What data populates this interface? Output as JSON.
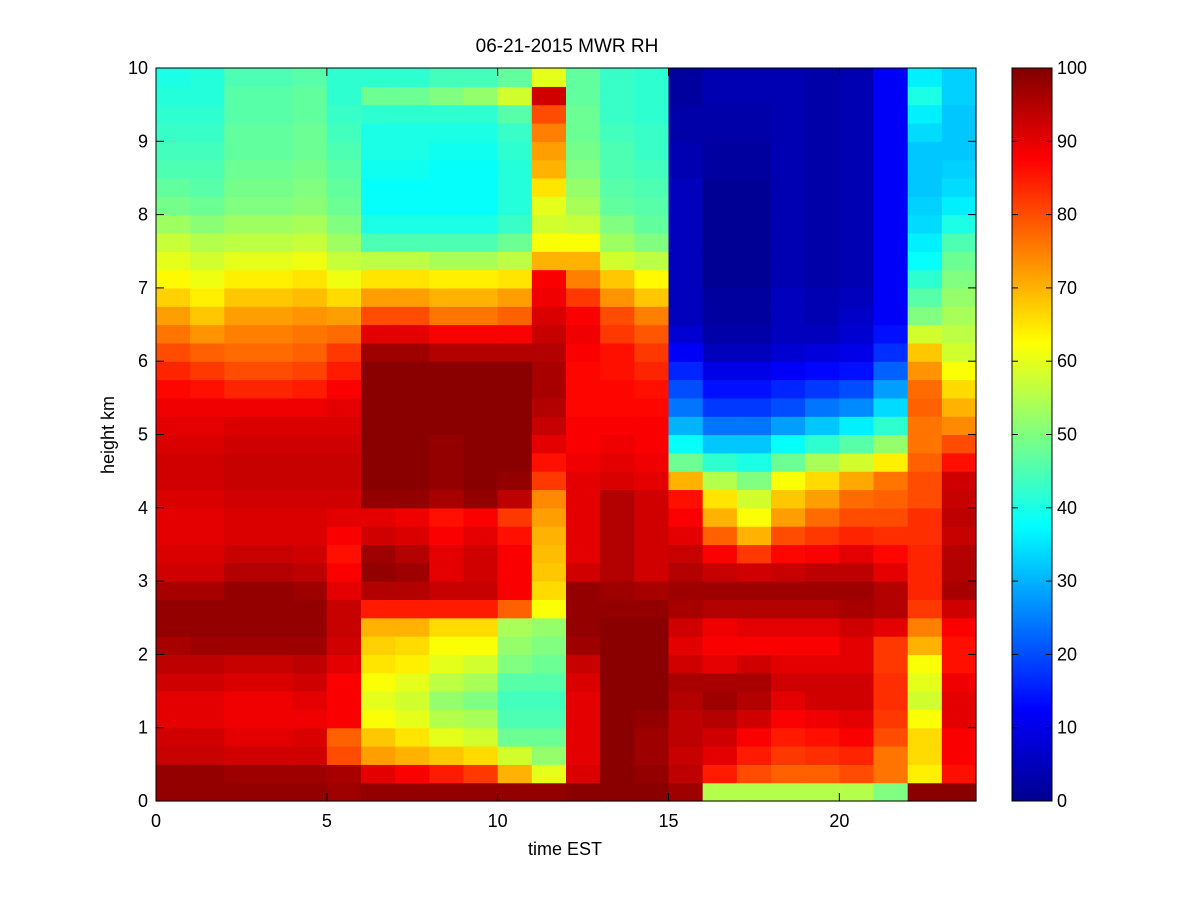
{
  "chart_data": {
    "type": "heatmap",
    "title": "06-21-2015 MWR RH",
    "xlabel": "time EST",
    "ylabel": "height km",
    "xlim": [
      0,
      24
    ],
    "ylim": [
      0,
      10
    ],
    "xticks": [
      "0",
      "5",
      "10",
      "15",
      "20"
    ],
    "yticks": [
      "0",
      "1",
      "2",
      "3",
      "4",
      "5",
      "6",
      "7",
      "8",
      "9",
      "10"
    ],
    "colorbar": {
      "range": [
        0,
        100
      ],
      "ticks": [
        "0",
        "10",
        "20",
        "30",
        "40",
        "50",
        "60",
        "70",
        "80",
        "90",
        "100"
      ],
      "colormap": "jet"
    },
    "grid": false,
    "hours": [
      0,
      1,
      2,
      3,
      4,
      5,
      6,
      7,
      8,
      9,
      10,
      11,
      12,
      13,
      14,
      15,
      16,
      17,
      18,
      19,
      20,
      21,
      22,
      23
    ],
    "heights": [
      0.0,
      0.25,
      0.5,
      0.75,
      1.0,
      1.25,
      1.5,
      1.75,
      2.0,
      2.25,
      2.5,
      2.75,
      3.0,
      3.25,
      3.5,
      3.75,
      4.0,
      4.25,
      4.5,
      4.75,
      5.0,
      5.25,
      5.5,
      5.75,
      6.0,
      6.25,
      6.5,
      6.75,
      7.0,
      7.25,
      7.5,
      7.75,
      8.0,
      8.25,
      8.5,
      8.75,
      9.0,
      9.25,
      9.5,
      9.75
    ],
    "rh_by_hour": [
      [
        98,
        98,
        93,
        92,
        90,
        90,
        92,
        94,
        96,
        98,
        98,
        96,
        92,
        91,
        90,
        90,
        91,
        92,
        92,
        91,
        90,
        89,
        87,
        84,
        80,
        76,
        72,
        67,
        63,
        60,
        57,
        53,
        49,
        47,
        45,
        44,
        43,
        42,
        41,
        40
      ],
      [
        98,
        98,
        93,
        92,
        90,
        90,
        92,
        94,
        97,
        98,
        98,
        96,
        92,
        91,
        90,
        90,
        91,
        92,
        92,
        91,
        90,
        89,
        86,
        82,
        78,
        73,
        68,
        64,
        61,
        58,
        55,
        51,
        48,
        46,
        45,
        44,
        43,
        42,
        41,
        41
      ],
      [
        98,
        97,
        92,
        90,
        89,
        89,
        91,
        93,
        97,
        98,
        98,
        98,
        95,
        93,
        91,
        91,
        92,
        93,
        93,
        92,
        91,
        89,
        84,
        80,
        77,
        75,
        72,
        68,
        64,
        60,
        56,
        53,
        50,
        49,
        48,
        47,
        47,
        46,
        46,
        45
      ],
      [
        98,
        97,
        92,
        90,
        89,
        89,
        91,
        93,
        97,
        98,
        98,
        98,
        95,
        93,
        91,
        91,
        92,
        93,
        93,
        92,
        91,
        89,
        84,
        80,
        77,
        75,
        72,
        68,
        64,
        60,
        56,
        53,
        50,
        49,
        48,
        47,
        47,
        46,
        46,
        45
      ],
      [
        98,
        97,
        92,
        91,
        89,
        90,
        92,
        94,
        97,
        98,
        98,
        97,
        94,
        92,
        91,
        91,
        92,
        93,
        93,
        92,
        91,
        89,
        85,
        81,
        78,
        76,
        73,
        69,
        65,
        61,
        57,
        54,
        51,
        50,
        49,
        48,
        48,
        47,
        47,
        46
      ],
      [
        97,
        96,
        80,
        78,
        88,
        88,
        88,
        90,
        92,
        93,
        93,
        90,
        88,
        86,
        88,
        90,
        92,
        93,
        93,
        92,
        91,
        90,
        88,
        85,
        82,
        77,
        72,
        66,
        61,
        57,
        53,
        50,
        48,
        47,
        46,
        45,
        44,
        43,
        42,
        42
      ],
      [
        98,
        90,
        72,
        68,
        62,
        60,
        62,
        65,
        67,
        70,
        85,
        95,
        98,
        97,
        92,
        90,
        98,
        99,
        99,
        99,
        99,
        99,
        99,
        99,
        97,
        90,
        80,
        72,
        65,
        56,
        45,
        40,
        38,
        38,
        39,
        40,
        40,
        42,
        48,
        42
      ],
      [
        98,
        88,
        70,
        65,
        60,
        58,
        60,
        64,
        66,
        70,
        85,
        95,
        97,
        95,
        91,
        89,
        98,
        99,
        99,
        99,
        99,
        99,
        99,
        99,
        97,
        90,
        80,
        72,
        65,
        56,
        45,
        40,
        38,
        38,
        39,
        40,
        40,
        42,
        48,
        42
      ],
      [
        98,
        85,
        68,
        60,
        55,
        52,
        56,
        60,
        62,
        66,
        85,
        93,
        90,
        90,
        88,
        86,
        96,
        98,
        98,
        98,
        99,
        99,
        99,
        99,
        95,
        88,
        76,
        70,
        64,
        54,
        45,
        40,
        38,
        38,
        38,
        39,
        40,
        42,
        50,
        44
      ],
      [
        98,
        82,
        66,
        58,
        54,
        50,
        54,
        58,
        62,
        66,
        85,
        93,
        92,
        92,
        90,
        88,
        98,
        99,
        99,
        99,
        99,
        99,
        99,
        99,
        95,
        88,
        76,
        70,
        64,
        54,
        45,
        40,
        38,
        38,
        38,
        39,
        40,
        42,
        52,
        44
      ],
      [
        98,
        70,
        58,
        48,
        45,
        44,
        46,
        50,
        52,
        54,
        78,
        88,
        88,
        88,
        86,
        82,
        94,
        98,
        99,
        99,
        99,
        99,
        99,
        99,
        95,
        88,
        78,
        72,
        65,
        56,
        48,
        43,
        41,
        41,
        41,
        42,
        43,
        46,
        58,
        47
      ],
      [
        98,
        60,
        52,
        48,
        45,
        44,
        46,
        48,
        50,
        52,
        62,
        66,
        68,
        69,
        70,
        72,
        74,
        82,
        86,
        90,
        93,
        95,
        96,
        96,
        95,
        93,
        91,
        89,
        88,
        70,
        62,
        58,
        60,
        65,
        70,
        72,
        75,
        80,
        92,
        60
      ],
      [
        99,
        91,
        90,
        90,
        90,
        90,
        91,
        93,
        97,
        98,
        98,
        98,
        92,
        90,
        90,
        90,
        90,
        90,
        89,
        88,
        88,
        87,
        87,
        87,
        88,
        89,
        88,
        82,
        75,
        70,
        62,
        57,
        54,
        52,
        50,
        49,
        48,
        48,
        47,
        47
      ],
      [
        99,
        99,
        99,
        99,
        99,
        99,
        99,
        99,
        99,
        99,
        98,
        97,
        95,
        95,
        95,
        95,
        95,
        91,
        90,
        89,
        88,
        87,
        87,
        86,
        86,
        82,
        80,
        73,
        68,
        58,
        53,
        50,
        47,
        46,
        45,
        45,
        44,
        43,
        43,
        43
      ],
      [
        99,
        98,
        97,
        97,
        98,
        99,
        99,
        99,
        99,
        99,
        98,
        96,
        92,
        92,
        92,
        92,
        92,
        90,
        89,
        88,
        88,
        87,
        86,
        84,
        82,
        79,
        75,
        68,
        63,
        56,
        50,
        47,
        46,
        45,
        44,
        43,
        43,
        42,
        42,
        42
      ],
      [
        97,
        94,
        93,
        94,
        94,
        95,
        96,
        92,
        90,
        92,
        96,
        97,
        95,
        93,
        90,
        88,
        86,
        70,
        48,
        38,
        30,
        24,
        20,
        16,
        12,
        8,
        6,
        6,
        6,
        6,
        6,
        6,
        6,
        6,
        5,
        5,
        4,
        4,
        3,
        3
      ],
      [
        55,
        85,
        90,
        92,
        95,
        97,
        96,
        90,
        88,
        89,
        95,
        97,
        93,
        88,
        78,
        70,
        65,
        55,
        42,
        32,
        24,
        18,
        14,
        10,
        6,
        4,
        3,
        3,
        2,
        2,
        2,
        2,
        2,
        2,
        3,
        3,
        4,
        4,
        5,
        5
      ],
      [
        55,
        80,
        85,
        88,
        92,
        95,
        96,
        92,
        88,
        90,
        95,
        97,
        92,
        82,
        70,
        62,
        58,
        50,
        40,
        32,
        24,
        18,
        14,
        10,
        6,
        4,
        3,
        3,
        2,
        2,
        2,
        2,
        2,
        2,
        3,
        3,
        4,
        4,
        5,
        5
      ],
      [
        55,
        78,
        82,
        85,
        88,
        90,
        92,
        90,
        88,
        90,
        95,
        97,
        93,
        87,
        80,
        72,
        68,
        62,
        48,
        38,
        28,
        20,
        16,
        12,
        8,
        6,
        6,
        6,
        5,
        5,
        5,
        5,
        5,
        5,
        5,
        5,
        5,
        5,
        5,
        5
      ],
      [
        55,
        78,
        83,
        86,
        89,
        92,
        92,
        90,
        88,
        90,
        95,
        97,
        94,
        88,
        82,
        77,
        72,
        66,
        54,
        42,
        32,
        24,
        18,
        13,
        9,
        6,
        5,
        5,
        4,
        4,
        4,
        4,
        4,
        4,
        4,
        4,
        4,
        4,
        4,
        4
      ],
      [
        55,
        80,
        84,
        88,
        90,
        92,
        92,
        90,
        90,
        92,
        96,
        97,
        94,
        90,
        84,
        80,
        77,
        71,
        58,
        46,
        36,
        26,
        20,
        14,
        10,
        8,
        7,
        6,
        5,
        5,
        5,
        5,
        5,
        5,
        5,
        5,
        5,
        5,
        5,
        5
      ],
      [
        50,
        76,
        76,
        80,
        82,
        83,
        83,
        82,
        82,
        90,
        95,
        95,
        90,
        87,
        83,
        80,
        78,
        76,
        64,
        52,
        42,
        34,
        28,
        22,
        17,
        14,
        12,
        12,
        12,
        12,
        12,
        12,
        12,
        12,
        12,
        12,
        12,
        12,
        12,
        12
      ],
      [
        99,
        64,
        66,
        66,
        62,
        58,
        60,
        62,
        70,
        75,
        82,
        84,
        84,
        84,
        83,
        83,
        80,
        80,
        78,
        76,
        76,
        78,
        77,
        73,
        68,
        58,
        50,
        46,
        42,
        38,
        36,
        34,
        33,
        32,
        32,
        32,
        34,
        36,
        40,
        36
      ],
      [
        99,
        86,
        88,
        88,
        90,
        90,
        89,
        86,
        86,
        88,
        92,
        96,
        95,
        95,
        93,
        94,
        93,
        92,
        86,
        80,
        74,
        70,
        66,
        62,
        58,
        56,
        54,
        52,
        50,
        48,
        45,
        40,
        36,
        34,
        33,
        32,
        32,
        32,
        33,
        33
      ]
    ]
  }
}
